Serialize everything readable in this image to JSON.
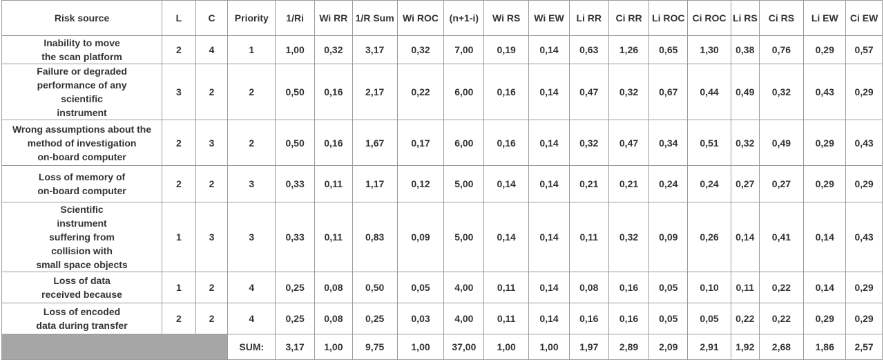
{
  "headers": [
    "Risk source",
    "L",
    "C",
    "Priority",
    "1/Ri",
    "Wi RR",
    "1/R Sum",
    "Wi ROC",
    "(n+1-i)",
    "Wi RS",
    "Wi EW",
    "Li RR",
    "Ci RR",
    "Li ROC",
    "Ci ROC",
    "Li RS",
    "Ci RS",
    "Li EW",
    "Ci EW"
  ],
  "rows": [
    {
      "source": [
        "Inability to move",
        "the scan platform"
      ],
      "cells": [
        "2",
        "4",
        "1",
        "1,00",
        "0,32",
        "3,17",
        "0,32",
        "7,00",
        "0,19",
        "0,14",
        "0,63",
        "1,26",
        "0,65",
        "1,30",
        "0,38",
        "0,76",
        "0,29",
        "0,57"
      ]
    },
    {
      "source": [
        "Failure or degraded",
        "performance of any",
        "scientific",
        "instrument"
      ],
      "cells": [
        "3",
        "2",
        "2",
        "0,50",
        "0,16",
        "2,17",
        "0,22",
        "6,00",
        "0,16",
        "0,14",
        "0,47",
        "0,32",
        "0,67",
        "0,44",
        "0,49",
        "0,32",
        "0,43",
        "0,29"
      ]
    },
    {
      "source": [
        "Wrong assumptions about the",
        "method of investigation",
        "on-board computer"
      ],
      "cells": [
        "2",
        "3",
        "2",
        "0,50",
        "0,16",
        "1,67",
        "0,17",
        "6,00",
        "0,16",
        "0,14",
        "0,32",
        "0,47",
        "0,34",
        "0,51",
        "0,32",
        "0,49",
        "0,29",
        "0,43"
      ]
    },
    {
      "source": [
        "Loss of memory of",
        "on-board computer"
      ],
      "cells": [
        "2",
        "2",
        "3",
        "0,33",
        "0,11",
        "1,17",
        "0,12",
        "5,00",
        "0,14",
        "0,14",
        "0,21",
        "0,21",
        "0,24",
        "0,24",
        "0,27",
        "0,27",
        "0,29",
        "0,29"
      ]
    },
    {
      "source": [
        "Scientific",
        "instrument",
        "suffering from",
        "collision with",
        "small space objects"
      ],
      "cells": [
        "1",
        "3",
        "3",
        "0,33",
        "0,11",
        "0,83",
        "0,09",
        "5,00",
        "0,14",
        "0,14",
        "0,11",
        "0,32",
        "0,09",
        "0,26",
        "0,14",
        "0,41",
        "0,14",
        "0,43"
      ]
    },
    {
      "source": [
        "Loss of data",
        "received because"
      ],
      "cells": [
        "1",
        "2",
        "4",
        "0,25",
        "0,08",
        "0,50",
        "0,05",
        "4,00",
        "0,11",
        "0,14",
        "0,08",
        "0,16",
        "0,05",
        "0,10",
        "0,11",
        "0,22",
        "0,14",
        "0,29"
      ]
    },
    {
      "source": [
        "Loss of encoded",
        "data during transfer"
      ],
      "cells": [
        "2",
        "2",
        "4",
        "0,25",
        "0,08",
        "0,25",
        "0,03",
        "4,00",
        "0,11",
        "0,14",
        "0,16",
        "0,16",
        "0,05",
        "0,05",
        "0,22",
        "0,22",
        "0,29",
        "0,29"
      ]
    }
  ],
  "sum_label": "SUM:",
  "sum_cells": [
    "3,17",
    "1,00",
    "9,75",
    "1,00",
    "37,00",
    "1,00",
    "1,00",
    "1,97",
    "2,89",
    "2,09",
    "2,91",
    "1,92",
    "2,68",
    "1,86",
    "2,57"
  ]
}
